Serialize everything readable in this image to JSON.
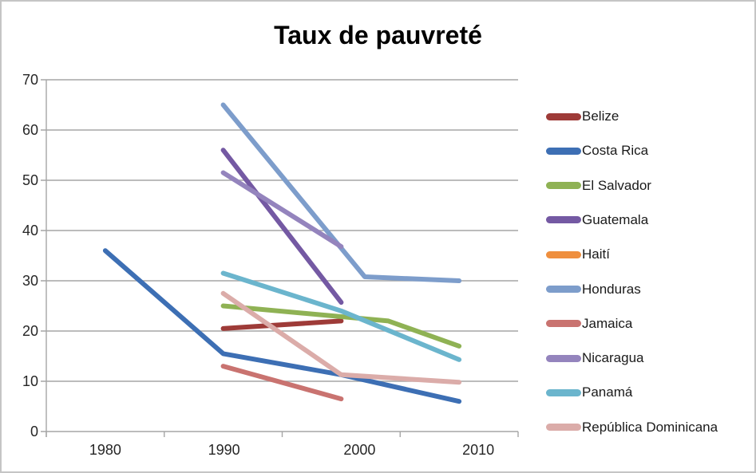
{
  "title": "Taux de pauvreté",
  "chart_data": {
    "type": "line",
    "title": "Taux de pauvreté",
    "xlabel": "",
    "ylabel": "",
    "x_tick_labels": [
      "1980",
      "1990",
      "2000",
      "2010"
    ],
    "y_tick_labels": [
      "0",
      "10",
      "20",
      "30",
      "40",
      "50",
      "60",
      "70"
    ],
    "ylim": [
      0,
      70
    ],
    "xlim_years": [
      1975,
      2015
    ],
    "grid": true,
    "legend_position": "right",
    "axis_color": "#a6a6a6",
    "series": [
      {
        "name": "Belize",
        "color": "#9e3b38",
        "points": [
          [
            1990,
            20.5
          ],
          [
            2000,
            22
          ]
        ]
      },
      {
        "name": "Costa Rica",
        "color": "#3d6fb4",
        "points": [
          [
            1980,
            36
          ],
          [
            1990,
            15.5
          ],
          [
            2000,
            11.3
          ],
          [
            2010,
            6
          ]
        ]
      },
      {
        "name": "El Salvador",
        "color": "#8fb254",
        "points": [
          [
            1990,
            25
          ],
          [
            2004,
            22
          ],
          [
            2010,
            17
          ]
        ]
      },
      {
        "name": "Guatemala",
        "color": "#7459a3",
        "points": [
          [
            1990,
            56
          ],
          [
            2000,
            25.7
          ]
        ]
      },
      {
        "name": "Haití",
        "color": "#ef8f3e",
        "points": []
      },
      {
        "name": "Honduras",
        "color": "#7d9dcb",
        "points": [
          [
            1990,
            65
          ],
          [
            2002,
            30.8
          ],
          [
            2010,
            30
          ]
        ]
      },
      {
        "name": "Jamaica",
        "color": "#c97370",
        "points": [
          [
            1990,
            13
          ],
          [
            2000,
            6.5
          ]
        ]
      },
      {
        "name": "Nicaragua",
        "color": "#9484bd",
        "points": [
          [
            1990,
            51.5
          ],
          [
            2000,
            36.8
          ]
        ]
      },
      {
        "name": "Panamá",
        "color": "#6bb5cd",
        "points": [
          [
            1990,
            31.5
          ],
          [
            2000,
            24
          ],
          [
            2010,
            14.3
          ]
        ]
      },
      {
        "name": "República Dominicana",
        "color": "#dbaca9",
        "points": [
          [
            1990,
            27.5
          ],
          [
            2000,
            11.3
          ],
          [
            2010,
            9.8
          ]
        ]
      }
    ]
  }
}
